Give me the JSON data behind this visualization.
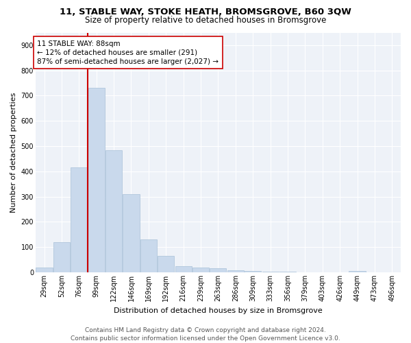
{
  "title": "11, STABLE WAY, STOKE HEATH, BROMSGROVE, B60 3QW",
  "subtitle": "Size of property relative to detached houses in Bromsgrove",
  "xlabel": "Distribution of detached houses by size in Bromsgrove",
  "ylabel": "Number of detached properties",
  "bar_color": "#c9d9ec",
  "bar_edge_color": "#a8c0d8",
  "background_color": "#eef2f8",
  "grid_color": "#ffffff",
  "vline_color": "#cc0000",
  "vline_x_index": 3,
  "annotation_text": "11 STABLE WAY: 88sqm\n← 12% of detached houses are smaller (291)\n87% of semi-detached houses are larger (2,027) →",
  "annotation_box_color": "#cc0000",
  "categories": [
    "29sqm",
    "52sqm",
    "76sqm",
    "99sqm",
    "122sqm",
    "146sqm",
    "169sqm",
    "192sqm",
    "216sqm",
    "239sqm",
    "263sqm",
    "286sqm",
    "309sqm",
    "333sqm",
    "356sqm",
    "379sqm",
    "403sqm",
    "426sqm",
    "449sqm",
    "473sqm",
    "496sqm"
  ],
  "values": [
    18,
    120,
    415,
    730,
    485,
    310,
    130,
    65,
    25,
    20,
    15,
    8,
    5,
    3,
    2,
    1,
    1,
    0,
    5,
    0,
    0
  ],
  "ylim": [
    0,
    950
  ],
  "yticks": [
    0,
    100,
    200,
    300,
    400,
    500,
    600,
    700,
    800,
    900
  ],
  "footer_text": "Contains HM Land Registry data © Crown copyright and database right 2024.\nContains public sector information licensed under the Open Government Licence v3.0.",
  "title_fontsize": 9.5,
  "subtitle_fontsize": 8.5,
  "xlabel_fontsize": 8,
  "ylabel_fontsize": 8,
  "tick_fontsize": 7,
  "annotation_fontsize": 7.5,
  "footer_fontsize": 6.5
}
